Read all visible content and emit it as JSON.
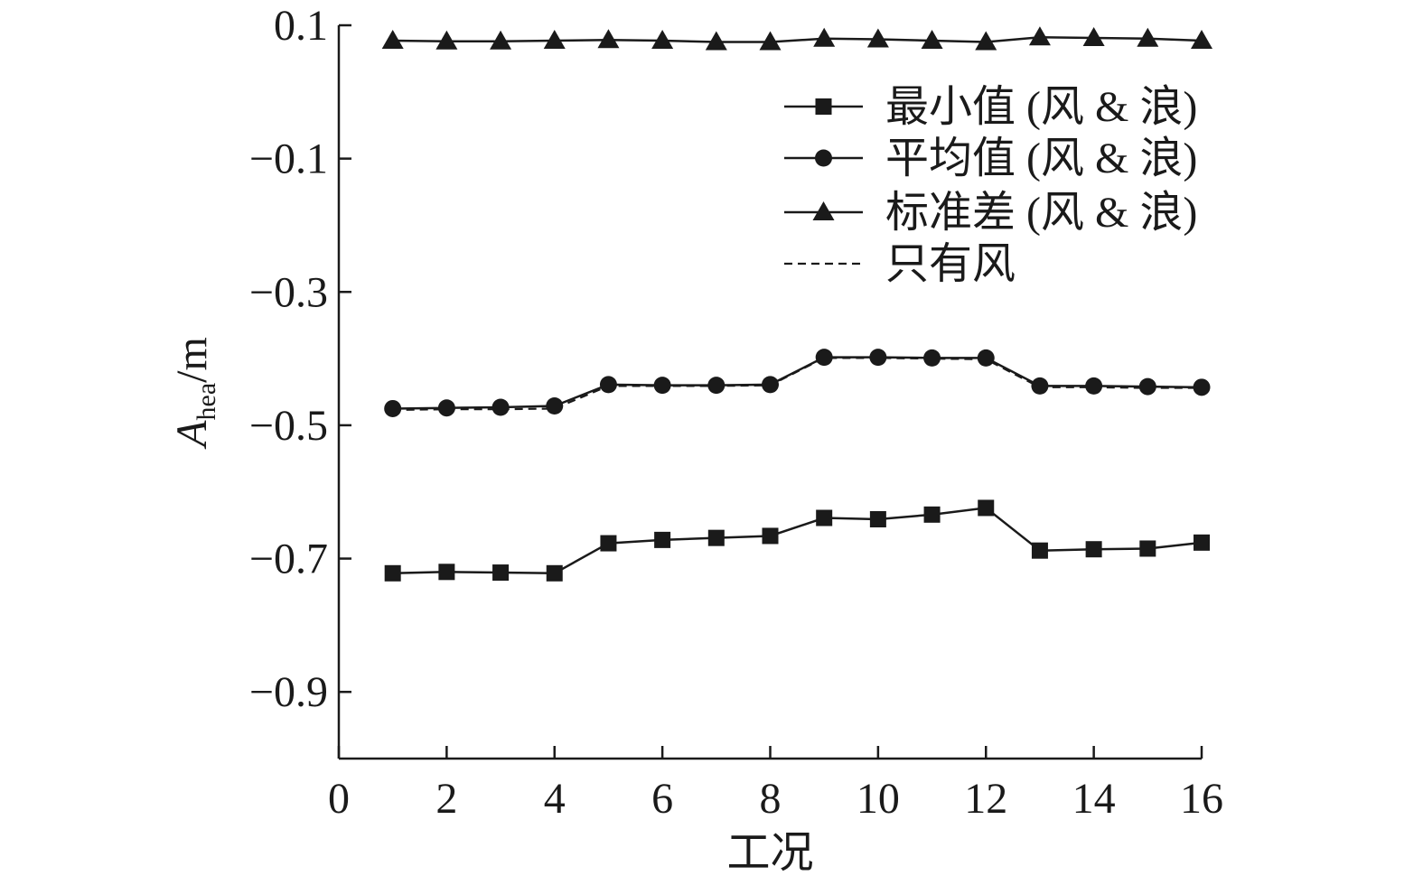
{
  "chart_data": {
    "type": "line",
    "xlabel": "工况",
    "ylabel": {
      "main": "A",
      "sub": "hea",
      "unit": "/m"
    },
    "xlim": [
      0,
      16
    ],
    "ylim": [
      -1.0,
      0.1
    ],
    "xticks": [
      0,
      2,
      4,
      6,
      8,
      10,
      12,
      14,
      16
    ],
    "yticks": [
      0.1,
      -0.1,
      -0.3,
      -0.5,
      -0.7,
      -0.9
    ],
    "ytick_labels": [
      "0.1",
      "−0.1",
      "−0.3",
      "−0.5",
      "−0.7",
      "−0.9"
    ],
    "x": [
      1,
      2,
      3,
      4,
      5,
      6,
      7,
      8,
      9,
      10,
      11,
      12,
      13,
      14,
      15,
      16
    ],
    "series": [
      {
        "name": "最小值 (风 & 浪)",
        "marker": "square",
        "style": "solid",
        "values": [
          -0.722,
          -0.72,
          -0.721,
          -0.722,
          -0.677,
          -0.672,
          -0.669,
          -0.666,
          -0.639,
          -0.641,
          -0.634,
          -0.624,
          -0.688,
          -0.686,
          -0.685,
          -0.676
        ]
      },
      {
        "name": "平均值 (风 & 浪)",
        "marker": "circle",
        "style": "solid",
        "values": [
          -0.475,
          -0.474,
          -0.473,
          -0.471,
          -0.439,
          -0.44,
          -0.44,
          -0.439,
          -0.398,
          -0.398,
          -0.399,
          -0.399,
          -0.441,
          -0.441,
          -0.442,
          -0.443
        ]
      },
      {
        "name": "标准差 (风 & 浪)",
        "marker": "triangle",
        "style": "solid",
        "values": [
          0.077,
          0.076,
          0.076,
          0.077,
          0.078,
          0.077,
          0.075,
          0.075,
          0.08,
          0.079,
          0.077,
          0.075,
          0.082,
          0.081,
          0.08,
          0.077
        ]
      },
      {
        "name": "只有风",
        "marker": "none",
        "style": "dashed",
        "values": [
          -0.477,
          -0.476,
          -0.476,
          -0.475,
          -0.441,
          -0.441,
          -0.441,
          -0.44,
          -0.399,
          -0.399,
          -0.4,
          -0.401,
          -0.443,
          -0.443,
          -0.444,
          -0.444
        ]
      }
    ],
    "grid": false,
    "legend_position": "upper-right",
    "colors": {
      "ink": "#1a1a1a",
      "background": "#ffffff"
    }
  }
}
